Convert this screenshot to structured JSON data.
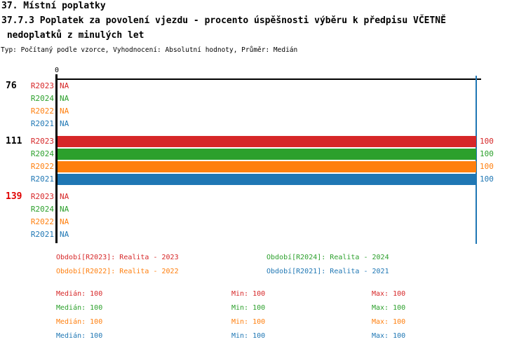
{
  "header": {
    "line1": "37. Místní poplatky",
    "line2": "37.7.3 Poplatek za povolení vjezdu - procento úspěšnosti výběru k předpisu VČETNĚ",
    "line3": " nedoplatků z minulých let",
    "meta": "Typ: Počítaný podle vzorce, Vyhodnocení: Absolutní hodnoty, Průměr: Medián"
  },
  "colors": {
    "R2023": "#d62728",
    "R2024": "#2ca02c",
    "R2022": "#ff7f0e",
    "R2021": "#1f77b4",
    "normal": "#000000",
    "alert": "#e00000"
  },
  "chart_data": {
    "type": "bar",
    "orientation": "horizontal",
    "title": "37.7.3 Poplatek za povolení vjezdu - procento úspěšnosti výběru k předpisu VČETNĚ nedoplatků z minulých let",
    "x_axis": {
      "tick": "0",
      "min": 0,
      "max_value": 100,
      "grid": false
    },
    "series_order": [
      "R2023",
      "R2024",
      "R2022",
      "R2021"
    ],
    "groups": [
      {
        "label": "76",
        "label_color": "normal",
        "rows": [
          {
            "series": "R2023",
            "value": "NA"
          },
          {
            "series": "R2024",
            "value": "NA"
          },
          {
            "series": "R2022",
            "value": "NA"
          },
          {
            "series": "R2021",
            "value": "NA"
          }
        ]
      },
      {
        "label": "111",
        "label_color": "normal",
        "rows": [
          {
            "series": "R2023",
            "value": 100
          },
          {
            "series": "R2024",
            "value": 100
          },
          {
            "series": "R2022",
            "value": 100
          },
          {
            "series": "R2021",
            "value": 100
          }
        ]
      },
      {
        "label": "139",
        "label_color": "alert",
        "rows": [
          {
            "series": "R2023",
            "value": "NA"
          },
          {
            "series": "R2024",
            "value": "NA"
          },
          {
            "series": "R2022",
            "value": "NA"
          },
          {
            "series": "R2021",
            "value": "NA"
          }
        ]
      }
    ],
    "reference_line": {
      "value": 100,
      "color": "#1f77b4"
    }
  },
  "legend": {
    "items": [
      {
        "label": "Období[R2023]: Realita - 2023",
        "series": "R2023",
        "col": 0,
        "row": 0
      },
      {
        "label": "Období[R2024]: Realita - 2024",
        "series": "R2024",
        "col": 1,
        "row": 0
      },
      {
        "label": "Období[R2022]: Realita - 2022",
        "series": "R2022",
        "col": 0,
        "row": 1
      },
      {
        "label": "Období[R2021]: Realita - 2021",
        "series": "R2021",
        "col": 1,
        "row": 1
      }
    ]
  },
  "stats": {
    "labels": {
      "median": "Medián",
      "min": "Min",
      "max": "Max"
    },
    "rows": [
      {
        "series": "R2023",
        "median": "100",
        "min": "100",
        "max": "100"
      },
      {
        "series": "R2024",
        "median": "100",
        "min": "100",
        "max": "100"
      },
      {
        "series": "R2022",
        "median": "100",
        "min": "100",
        "max": "100"
      },
      {
        "series": "R2021",
        "median": "100",
        "min": "100",
        "max": "100"
      }
    ]
  }
}
